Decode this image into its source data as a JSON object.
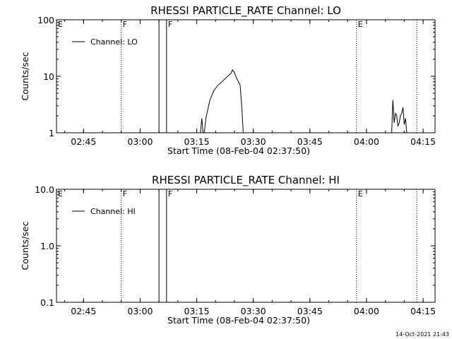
{
  "chart_data": [
    {
      "type": "line",
      "title": "RHESSI PARTICLE_RATE Channel: LO",
      "xlabel": "Start Time (08-Feb-04 02:37:50)",
      "ylabel": "Counts/sec",
      "yscale": "log",
      "ylim": [
        1,
        100
      ],
      "y_tick_labels": [
        "1",
        "10",
        "100"
      ],
      "xlim": [
        "02:37:50",
        "04:18:10"
      ],
      "x_tick_labels": [
        "02:45",
        "03:00",
        "03:15",
        "03:30",
        "03:45",
        "04:00",
        "04:15"
      ],
      "legend": {
        "label": "Channel: LO",
        "position": "top-left"
      },
      "grid": false,
      "markers": [
        {
          "label": "E",
          "time": "02:37:50",
          "style": "solid",
          "show_label": true
        },
        {
          "label": "F",
          "time": "02:55:00",
          "style": "dotted",
          "show_label": true
        },
        {
          "label": "",
          "time": "03:05:00",
          "style": "solid",
          "show_label": false
        },
        {
          "label": "F",
          "time": "03:07:00",
          "style": "solid",
          "show_label": true
        },
        {
          "label": "E",
          "time": "03:57:20",
          "style": "dotted",
          "show_label": true
        },
        {
          "label": "",
          "time": "04:13:20",
          "style": "dotted",
          "show_label": false
        }
      ],
      "series": [
        {
          "name": "Channel: LO",
          "segments": [
            [
              [
                "03:16:00",
                1
              ],
              [
                "03:16:20",
                1.8
              ],
              [
                "03:16:40",
                1
              ],
              [
                "03:17:00",
                1
              ],
              [
                "03:17:30",
                1.9
              ],
              [
                "03:18:30",
                3.8
              ],
              [
                "03:19:30",
                5.5
              ],
              [
                "03:20:30",
                6.8
              ],
              [
                "03:21:30",
                7.8
              ],
              [
                "03:22:30",
                9.0
              ],
              [
                "03:23:30",
                10.5
              ],
              [
                "03:24:00",
                11.0
              ],
              [
                "03:24:30",
                13.0
              ],
              [
                "03:25:00",
                11.5
              ],
              [
                "03:25:30",
                9.5
              ],
              [
                "03:26:30",
                7.0
              ],
              [
                "03:27:00",
                2.5
              ],
              [
                "03:27:20",
                1
              ]
            ],
            [
              [
                "04:06:40",
                1
              ],
              [
                "04:07:00",
                3.8
              ],
              [
                "04:07:20",
                1.5
              ],
              [
                "04:07:40",
                2.2
              ],
              [
                "04:08:00",
                2.0
              ],
              [
                "04:08:20",
                1.3
              ],
              [
                "04:08:40",
                1.5
              ],
              [
                "04:09:00",
                2.0
              ],
              [
                "04:09:20",
                2.2
              ],
              [
                "04:09:40",
                2.8
              ],
              [
                "04:10:00",
                1.4
              ],
              [
                "04:10:20",
                1.8
              ],
              [
                "04:10:40",
                1
              ]
            ]
          ]
        }
      ]
    },
    {
      "type": "line",
      "title": "RHESSI PARTICLE_RATE Channel: HI",
      "xlabel": "Start Time (08-Feb-04 02:37:50)",
      "ylabel": "Counts/sec",
      "yscale": "log",
      "ylim": [
        0.1,
        10
      ],
      "y_tick_labels": [
        "0.1",
        "1.0",
        "10.0"
      ],
      "xlim": [
        "02:37:50",
        "04:18:10"
      ],
      "x_tick_labels": [
        "02:45",
        "03:00",
        "03:15",
        "03:30",
        "03:45",
        "04:00",
        "04:15"
      ],
      "legend": {
        "label": "Channel: HI",
        "position": "top-left"
      },
      "grid": false,
      "markers": [
        {
          "label": "E",
          "time": "02:37:50",
          "style": "solid",
          "show_label": true
        },
        {
          "label": "F",
          "time": "02:55:00",
          "style": "dotted",
          "show_label": true
        },
        {
          "label": "",
          "time": "03:05:00",
          "style": "solid",
          "show_label": false
        },
        {
          "label": "F",
          "time": "03:07:00",
          "style": "solid",
          "show_label": true
        },
        {
          "label": "E",
          "time": "03:57:20",
          "style": "dotted",
          "show_label": true
        },
        {
          "label": "",
          "time": "04:13:20",
          "style": "dotted",
          "show_label": false
        }
      ],
      "series": [
        {
          "name": "Channel: HI",
          "segments": []
        }
      ]
    }
  ],
  "timestamp": "14-Oct-2021 21:43"
}
